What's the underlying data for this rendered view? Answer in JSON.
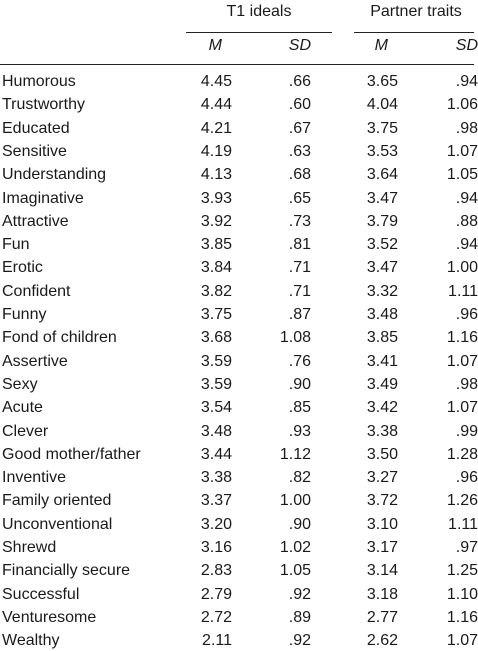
{
  "table": {
    "group_headers": [
      "T1 ideals",
      "Partner traits"
    ],
    "sub_headers": [
      "M",
      "SD",
      "M",
      "SD"
    ],
    "rows": [
      [
        "Humorous",
        "4.45",
        ".66",
        "3.65",
        ".94"
      ],
      [
        "Trustworthy",
        "4.44",
        ".60",
        "4.04",
        "1.06"
      ],
      [
        "Educated",
        "4.21",
        ".67",
        "3.75",
        ".98"
      ],
      [
        "Sensitive",
        "4.19",
        ".63",
        "3.53",
        "1.07"
      ],
      [
        "Understanding",
        "4.13",
        ".68",
        "3.64",
        "1.05"
      ],
      [
        "Imaginative",
        "3.93",
        ".65",
        "3.47",
        ".94"
      ],
      [
        "Attractive",
        "3.92",
        ".73",
        "3.79",
        ".88"
      ],
      [
        "Fun",
        "3.85",
        ".81",
        "3.52",
        ".94"
      ],
      [
        "Erotic",
        "3.84",
        ".71",
        "3.47",
        "1.00"
      ],
      [
        "Confident",
        "3.82",
        ".71",
        "3.32",
        "1.11"
      ],
      [
        "Funny",
        "3.75",
        ".87",
        "3.48",
        ".96"
      ],
      [
        "Fond of children",
        "3.68",
        "1.08",
        "3.85",
        "1.16"
      ],
      [
        "Assertive",
        "3.59",
        ".76",
        "3.41",
        "1.07"
      ],
      [
        "Sexy",
        "3.59",
        ".90",
        "3.49",
        ".98"
      ],
      [
        "Acute",
        "3.54",
        ".85",
        "3.42",
        "1.07"
      ],
      [
        "Clever",
        "3.48",
        ".93",
        "3.38",
        ".99"
      ],
      [
        "Good mother/father",
        "3.44",
        "1.12",
        "3.50",
        "1.28"
      ],
      [
        "Inventive",
        "3.38",
        ".82",
        "3.27",
        ".96"
      ],
      [
        "Family oriented",
        "3.37",
        "1.00",
        "3.72",
        "1.26"
      ],
      [
        "Unconventional",
        "3.20",
        ".90",
        "3.10",
        "1.11"
      ],
      [
        "Shrewd",
        "3.16",
        "1.02",
        "3.17",
        ".97"
      ],
      [
        "Financially secure",
        "2.83",
        "1.05",
        "3.14",
        "1.25"
      ],
      [
        "Successful",
        "2.79",
        ".92",
        "3.18",
        "1.10"
      ],
      [
        "Venturesome",
        "2.72",
        ".89",
        "2.77",
        "1.16"
      ],
      [
        "Wealthy",
        "2.11",
        ".92",
        "2.62",
        "1.07"
      ]
    ]
  }
}
